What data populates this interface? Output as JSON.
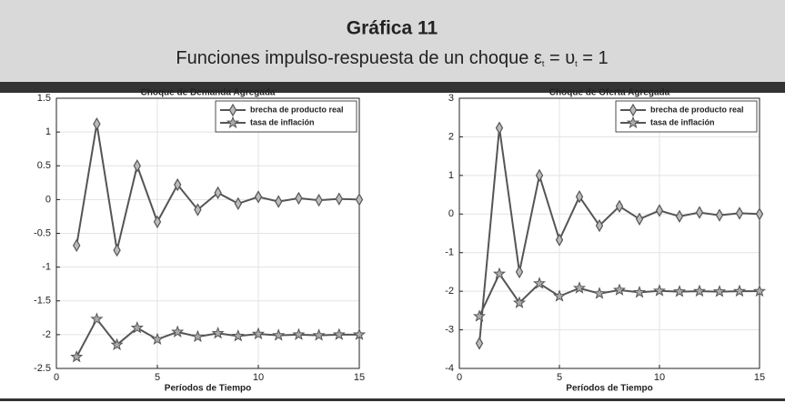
{
  "header": {
    "title": "Gráfica 11",
    "subtitle": [
      "Funciones impulso-respuesta de un choque ε",
      "t",
      " = υ",
      "t",
      " = 1"
    ]
  },
  "chart_data": [
    {
      "type": "line",
      "title": "Choque de Demanda Agregada",
      "xlabel": "Períodos de Tiempo",
      "x": [
        1,
        2,
        3,
        4,
        5,
        6,
        7,
        8,
        9,
        10,
        11,
        12,
        13,
        14,
        15
      ],
      "series": [
        {
          "name": "brecha de producto real",
          "color": "#555555",
          "marker": "diamond",
          "values": [
            -0.68,
            1.12,
            -0.75,
            0.5,
            -0.33,
            0.22,
            -0.15,
            0.1,
            -0.06,
            0.04,
            -0.03,
            0.02,
            -0.01,
            0.01,
            0.0
          ]
        },
        {
          "name": "tasa de inflación",
          "color": "#555555",
          "marker": "star",
          "values": [
            -2.33,
            -1.77,
            -2.15,
            -1.9,
            -2.07,
            -1.96,
            -2.03,
            -1.98,
            -2.02,
            -1.99,
            -2.01,
            -2.0,
            -2.01,
            -2.0,
            -2.0
          ]
        }
      ],
      "xlim": [
        0,
        15
      ],
      "xticks": [
        0,
        5,
        10,
        15
      ],
      "ylim": [
        -2.5,
        1.5
      ],
      "yticks": [
        -2.5,
        -2,
        -1.5,
        -1,
        -0.5,
        0,
        0.5,
        1,
        1.5
      ],
      "grid": true,
      "legend": "upper right"
    },
    {
      "type": "line",
      "title": "Choque de Oferta Agregada",
      "xlabel": "Períodos de Tiempo",
      "x": [
        1,
        2,
        3,
        4,
        5,
        6,
        7,
        8,
        9,
        10,
        11,
        12,
        13,
        14,
        15
      ],
      "series": [
        {
          "name": "brecha de producto real",
          "color": "#555555",
          "marker": "diamond",
          "values": [
            -3.35,
            2.23,
            -1.5,
            1.0,
            -0.67,
            0.45,
            -0.3,
            0.2,
            -0.13,
            0.09,
            -0.06,
            0.04,
            -0.03,
            0.02,
            0.0
          ]
        },
        {
          "name": "tasa de inflación",
          "color": "#555555",
          "marker": "star",
          "values": [
            -2.65,
            -1.55,
            -2.3,
            -1.8,
            -2.13,
            -1.92,
            -2.06,
            -1.97,
            -2.03,
            -1.99,
            -2.01,
            -2.0,
            -2.01,
            -2.0,
            -2.0
          ]
        }
      ],
      "xlim": [
        0,
        15
      ],
      "xticks": [
        0,
        5,
        10,
        15
      ],
      "ylim": [
        -4,
        3
      ],
      "yticks": [
        -4,
        -3,
        -2,
        -1,
        0,
        1,
        2,
        3
      ],
      "grid": true,
      "legend": "upper right"
    }
  ]
}
